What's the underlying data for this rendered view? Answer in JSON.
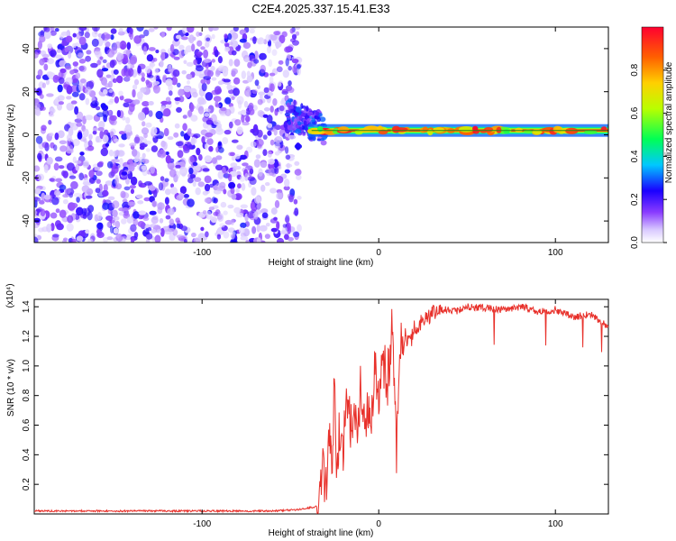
{
  "title": "C2E4.2025.337.15.41.E33",
  "colors": {
    "snr_line": "#e8302a",
    "background": "#ffffff"
  },
  "chart_data": [
    {
      "type": "heatmap",
      "xlabel": "Height of straight line (km)",
      "ylabel": "Frequency (Hz)",
      "xlim": [
        -195,
        130
      ],
      "ylim": [
        -50,
        50
      ],
      "xticks": [
        -100,
        0,
        100
      ],
      "xtick_labels": [
        "-100",
        "0",
        "100"
      ],
      "yticks": [
        -40,
        -20,
        0,
        20,
        40
      ],
      "ytick_labels": [
        "-40",
        "-20",
        "0",
        "20",
        "40"
      ],
      "colorbar": {
        "label": "Normalized spectral amplitude",
        "range": [
          0,
          1
        ],
        "ticks": [
          0.0,
          0.2,
          0.4,
          0.6,
          0.8
        ],
        "tick_labels": [
          "0.0",
          "0.2",
          "0.4",
          "0.6",
          "0.8"
        ]
      },
      "regions": [
        {
          "name": "noise",
          "x_range": [
            -195,
            -45
          ],
          "freq_range": [
            -50,
            50
          ],
          "amplitude": 0.15
        },
        {
          "name": "transition",
          "x_range": [
            -45,
            -30
          ],
          "freq_center": 8,
          "amplitude": 0.3
        },
        {
          "name": "ridge",
          "x_range": [
            -30,
            130
          ],
          "freq_center": 2,
          "amplitude": 0.95
        }
      ]
    },
    {
      "type": "line",
      "xlabel": "Height of straight line (km)",
      "ylabel": "SNR (10 * v/v)",
      "y_multiplier": "(x10⁴)",
      "xlim": [
        -195,
        130
      ],
      "ylim": [
        0,
        1.45
      ],
      "xticks": [
        -100,
        0,
        100
      ],
      "xtick_labels": [
        "-100",
        "0",
        "100"
      ],
      "yticks": [
        0.2,
        0.4,
        0.6,
        0.8,
        1.0,
        1.2,
        1.4
      ],
      "ytick_labels": [
        "0.2",
        "0.4",
        "0.6",
        "0.8",
        "1.0",
        "1.2",
        "1.4"
      ],
      "series": [
        {
          "name": "SNR",
          "x": [
            -195,
            -180,
            -160,
            -140,
            -120,
            -100,
            -80,
            -60,
            -45,
            -35,
            -32,
            -30,
            -28,
            -26,
            -25,
            -24,
            -22,
            -20,
            -18,
            -16,
            -14,
            -12,
            -10,
            -8,
            -6,
            -4,
            -2,
            0,
            2,
            5,
            8,
            10,
            12,
            15,
            18,
            20,
            25,
            30,
            35,
            40,
            45,
            50,
            60,
            70,
            80,
            90,
            100,
            110,
            120,
            125,
            130
          ],
          "values": [
            0.02,
            0.02,
            0.02,
            0.02,
            0.02,
            0.02,
            0.02,
            0.02,
            0.03,
            0.05,
            0.3,
            0.2,
            0.5,
            0.4,
            1.05,
            0.35,
            0.6,
            0.45,
            0.85,
            0.55,
            0.7,
            0.5,
            0.9,
            0.6,
            0.75,
            0.65,
            1.0,
            0.8,
            1.05,
            0.9,
            1.3,
            0.38,
            1.1,
            1.2,
            1.15,
            1.25,
            1.3,
            1.35,
            1.38,
            1.38,
            1.37,
            1.4,
            1.39,
            1.38,
            1.4,
            1.37,
            1.38,
            1.33,
            1.35,
            1.3,
            1.27
          ]
        }
      ]
    }
  ]
}
